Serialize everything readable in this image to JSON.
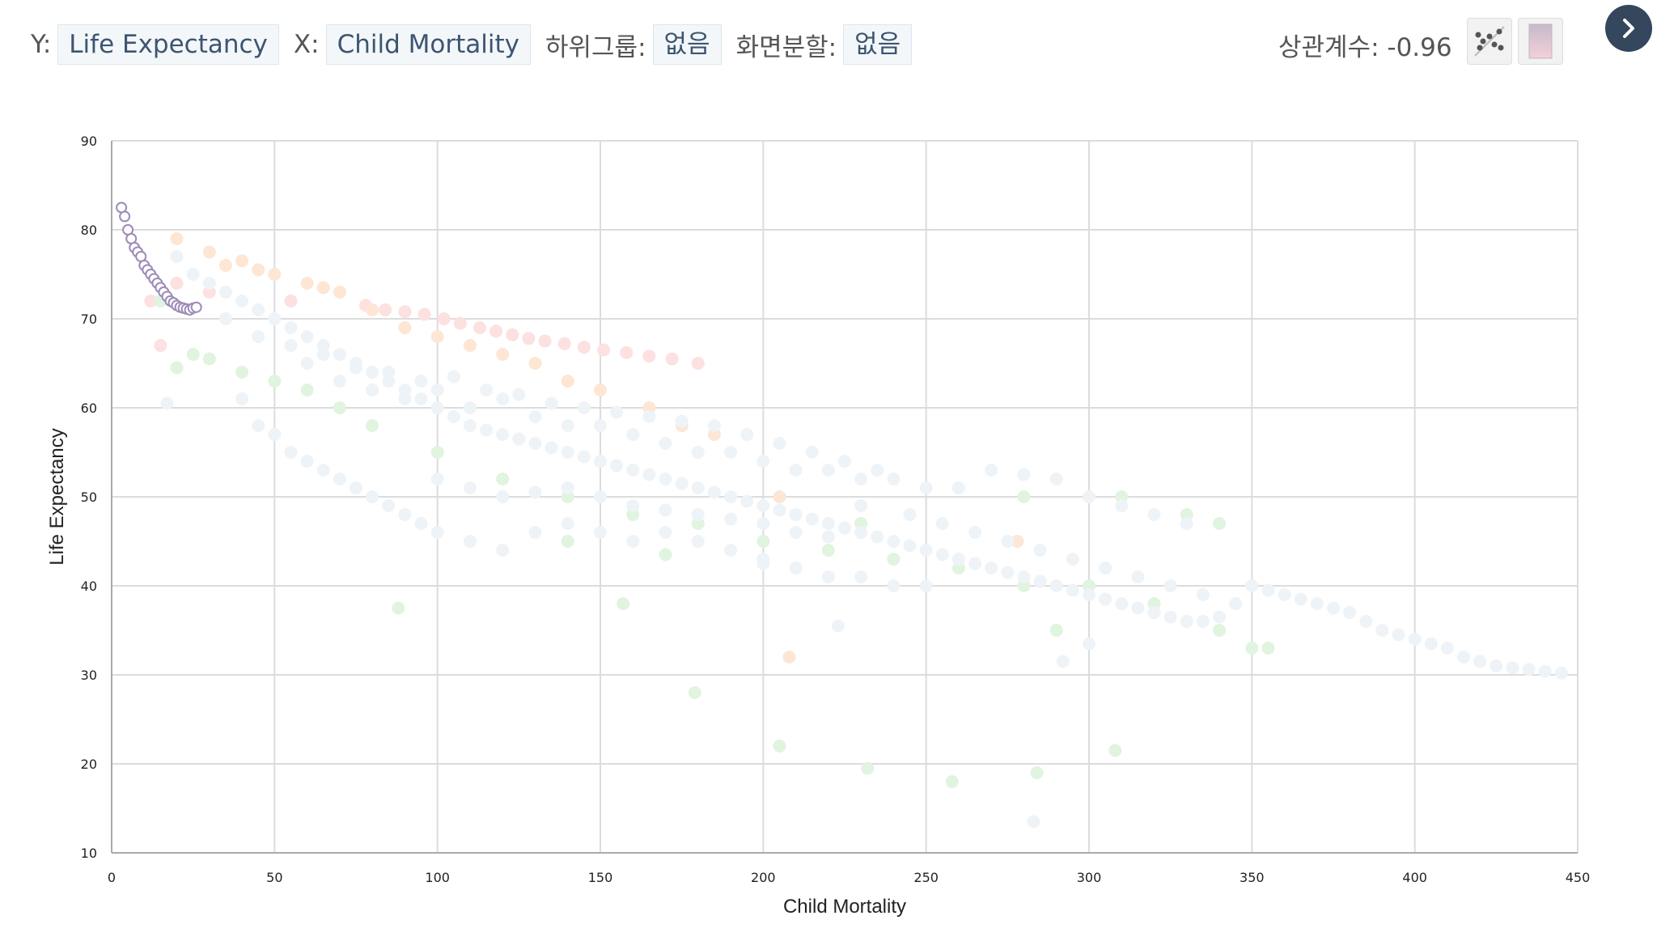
{
  "toolbar": {
    "y_label": "Y:",
    "y_value": "Life Expectancy",
    "x_label": "X:",
    "x_value": "Child Mortality",
    "subgroup_label": "하위그룹:",
    "subgroup_value": "없음",
    "split_label": "화면분할:",
    "split_value": "없음",
    "correlation": "상관계수: -0.96"
  },
  "icons": {
    "scatter": "scatter-trend-icon",
    "color": "color-gradient-icon",
    "next": "chevron-right-icon"
  },
  "chart_data": {
    "type": "scatter",
    "xlabel": "Child Mortality",
    "ylabel": "Life Expectancy",
    "xlim": [
      0,
      450
    ],
    "ylim": [
      10,
      90
    ],
    "xticks": [
      0,
      50,
      100,
      150,
      200,
      250,
      300,
      350,
      400,
      450
    ],
    "yticks": [
      10,
      20,
      30,
      40,
      50,
      60,
      70,
      80,
      90
    ],
    "grid": true,
    "colors": {
      "pink": "#fde0e0",
      "orange": "#fde6d3",
      "green": "#e0f4e0",
      "blue": "#eef3f8",
      "highlight": "#9d8bb8"
    },
    "series": [
      {
        "color": "pink",
        "values": [
          [
            78,
            71.5
          ],
          [
            84,
            71
          ],
          [
            90,
            70.8
          ],
          [
            96,
            70.5
          ],
          [
            102,
            70
          ],
          [
            107,
            69.5
          ],
          [
            113,
            69
          ],
          [
            118,
            68.6
          ],
          [
            123,
            68.2
          ],
          [
            128,
            67.8
          ],
          [
            133,
            67.5
          ],
          [
            139,
            67.2
          ],
          [
            145,
            66.8
          ],
          [
            151,
            66.5
          ],
          [
            158,
            66.2
          ],
          [
            165,
            65.8
          ],
          [
            172,
            65.5
          ],
          [
            180,
            65
          ],
          [
            15,
            67
          ],
          [
            12,
            72
          ],
          [
            20,
            74
          ],
          [
            30,
            73
          ],
          [
            55,
            72
          ]
        ]
      },
      {
        "color": "orange",
        "values": [
          [
            20,
            79
          ],
          [
            30,
            77.5
          ],
          [
            40,
            76.5
          ],
          [
            50,
            75
          ],
          [
            60,
            74
          ],
          [
            70,
            73
          ],
          [
            80,
            71
          ],
          [
            90,
            69
          ],
          [
            100,
            68
          ],
          [
            110,
            67
          ],
          [
            120,
            66
          ],
          [
            130,
            65
          ],
          [
            140,
            63
          ],
          [
            150,
            62
          ],
          [
            165,
            60
          ],
          [
            175,
            58
          ],
          [
            185,
            57
          ],
          [
            208,
            32
          ],
          [
            278,
            45
          ],
          [
            205,
            50
          ],
          [
            35,
            76
          ],
          [
            45,
            75.5
          ],
          [
            65,
            73.5
          ]
        ]
      },
      {
        "color": "green",
        "values": [
          [
            15,
            72
          ],
          [
            20,
            64.5
          ],
          [
            25,
            66
          ],
          [
            30,
            65.5
          ],
          [
            40,
            64
          ],
          [
            50,
            63
          ],
          [
            60,
            62
          ],
          [
            70,
            60
          ],
          [
            80,
            58
          ],
          [
            100,
            55
          ],
          [
            120,
            52
          ],
          [
            140,
            50
          ],
          [
            160,
            48
          ],
          [
            180,
            47
          ],
          [
            200,
            45
          ],
          [
            220,
            44
          ],
          [
            240,
            43
          ],
          [
            260,
            42
          ],
          [
            280,
            40
          ],
          [
            300,
            40
          ],
          [
            320,
            38
          ],
          [
            330,
            36
          ],
          [
            340,
            35
          ],
          [
            350,
            33
          ],
          [
            355,
            33
          ],
          [
            290,
            35
          ],
          [
            310,
            50
          ],
          [
            330,
            48
          ],
          [
            340,
            47
          ],
          [
            157,
            38
          ],
          [
            179,
            28
          ],
          [
            205,
            22
          ],
          [
            232,
            19.5
          ],
          [
            258,
            18
          ],
          [
            284,
            19
          ],
          [
            308,
            21.5
          ],
          [
            88,
            37.5
          ],
          [
            140,
            45
          ],
          [
            170,
            43.5
          ],
          [
            230,
            47
          ],
          [
            280,
            50
          ]
        ]
      },
      {
        "color": "blue",
        "values": [
          [
            20,
            77
          ],
          [
            25,
            75
          ],
          [
            30,
            74
          ],
          [
            35,
            73
          ],
          [
            40,
            72
          ],
          [
            45,
            71
          ],
          [
            50,
            70
          ],
          [
            55,
            69
          ],
          [
            60,
            68
          ],
          [
            65,
            67
          ],
          [
            70,
            66
          ],
          [
            75,
            65
          ],
          [
            80,
            64
          ],
          [
            85,
            63
          ],
          [
            90,
            62
          ],
          [
            95,
            61
          ],
          [
            100,
            60
          ],
          [
            105,
            59
          ],
          [
            110,
            58
          ],
          [
            115,
            57.5
          ],
          [
            120,
            57
          ],
          [
            125,
            56.5
          ],
          [
            130,
            56
          ],
          [
            135,
            55.5
          ],
          [
            140,
            55
          ],
          [
            145,
            54.5
          ],
          [
            150,
            54
          ],
          [
            155,
            53.5
          ],
          [
            160,
            53
          ],
          [
            165,
            52.5
          ],
          [
            170,
            52
          ],
          [
            175,
            51.5
          ],
          [
            180,
            51
          ],
          [
            185,
            50.5
          ],
          [
            190,
            50
          ],
          [
            195,
            49.5
          ],
          [
            200,
            49
          ],
          [
            205,
            48.5
          ],
          [
            210,
            48
          ],
          [
            215,
            47.5
          ],
          [
            220,
            47
          ],
          [
            225,
            46.5
          ],
          [
            230,
            46
          ],
          [
            235,
            45.5
          ],
          [
            240,
            45
          ],
          [
            245,
            44.5
          ],
          [
            250,
            44
          ],
          [
            255,
            43.5
          ],
          [
            260,
            43
          ],
          [
            265,
            42.5
          ],
          [
            270,
            42
          ],
          [
            275,
            41.5
          ],
          [
            280,
            41
          ],
          [
            285,
            40.5
          ],
          [
            290,
            40
          ],
          [
            295,
            39.5
          ],
          [
            300,
            39
          ],
          [
            305,
            38.5
          ],
          [
            310,
            38
          ],
          [
            315,
            37.5
          ],
          [
            320,
            37
          ],
          [
            325,
            36.5
          ],
          [
            330,
            36
          ],
          [
            335,
            36
          ],
          [
            340,
            36.5
          ],
          [
            350,
            40
          ],
          [
            355,
            39.5
          ],
          [
            360,
            39
          ],
          [
            365,
            38.5
          ],
          [
            370,
            38
          ],
          [
            375,
            37.5
          ],
          [
            380,
            37
          ],
          [
            385,
            36
          ],
          [
            390,
            35
          ],
          [
            395,
            34.5
          ],
          [
            400,
            34
          ],
          [
            405,
            33.5
          ],
          [
            410,
            33
          ],
          [
            415,
            32
          ],
          [
            420,
            31.5
          ],
          [
            425,
            31
          ],
          [
            430,
            30.8
          ],
          [
            435,
            30.6
          ],
          [
            440,
            30.4
          ],
          [
            445,
            30.2
          ],
          [
            40,
            61
          ],
          [
            45,
            58
          ],
          [
            50,
            57
          ],
          [
            55,
            55
          ],
          [
            60,
            54
          ],
          [
            65,
            53
          ],
          [
            70,
            52
          ],
          [
            75,
            51
          ],
          [
            80,
            50
          ],
          [
            85,
            49
          ],
          [
            90,
            48
          ],
          [
            95,
            47
          ],
          [
            100,
            46
          ],
          [
            110,
            45
          ],
          [
            120,
            44
          ],
          [
            130,
            46
          ],
          [
            140,
            47
          ],
          [
            150,
            46
          ],
          [
            160,
            45
          ],
          [
            170,
            46
          ],
          [
            180,
            45
          ],
          [
            190,
            44
          ],
          [
            200,
            43
          ],
          [
            210,
            42
          ],
          [
            220,
            41
          ],
          [
            230,
            41
          ],
          [
            240,
            40
          ],
          [
            250,
            40
          ],
          [
            60,
            65
          ],
          [
            70,
            63
          ],
          [
            80,
            62
          ],
          [
            90,
            61
          ],
          [
            100,
            62
          ],
          [
            110,
            60
          ],
          [
            120,
            61
          ],
          [
            130,
            59
          ],
          [
            140,
            58
          ],
          [
            150,
            58
          ],
          [
            160,
            57
          ],
          [
            170,
            56
          ],
          [
            180,
            55
          ],
          [
            190,
            55
          ],
          [
            200,
            54
          ],
          [
            210,
            53
          ],
          [
            220,
            53
          ],
          [
            230,
            52
          ],
          [
            240,
            52
          ],
          [
            250,
            51
          ],
          [
            260,
            51
          ],
          [
            270,
            53
          ],
          [
            280,
            52.5
          ],
          [
            290,
            52
          ],
          [
            300,
            50
          ],
          [
            310,
            49
          ],
          [
            320,
            48
          ],
          [
            330,
            47
          ],
          [
            17,
            60.5
          ],
          [
            200,
            42.5
          ],
          [
            223,
            35.5
          ],
          [
            283,
            13.5
          ],
          [
            300,
            33.5
          ],
          [
            292,
            31.5
          ],
          [
            230,
            49
          ],
          [
            245,
            48
          ],
          [
            255,
            47
          ],
          [
            265,
            46
          ],
          [
            275,
            45
          ],
          [
            285,
            44
          ],
          [
            295,
            43
          ],
          [
            305,
            42
          ],
          [
            315,
            41
          ],
          [
            325,
            40
          ],
          [
            335,
            39
          ],
          [
            345,
            38
          ],
          [
            100,
            52
          ],
          [
            110,
            51
          ],
          [
            120,
            50
          ],
          [
            130,
            50.5
          ],
          [
            140,
            51
          ],
          [
            150,
            50
          ],
          [
            160,
            49
          ],
          [
            170,
            48.5
          ],
          [
            180,
            48
          ],
          [
            190,
            47.5
          ],
          [
            200,
            47
          ],
          [
            210,
            46
          ],
          [
            220,
            45.5
          ],
          [
            35,
            70
          ],
          [
            45,
            68
          ],
          [
            55,
            67
          ],
          [
            65,
            66
          ],
          [
            75,
            64.5
          ],
          [
            85,
            64
          ],
          [
            95,
            63
          ],
          [
            105,
            63.5
          ],
          [
            115,
            62
          ],
          [
            125,
            61.5
          ],
          [
            135,
            60.5
          ],
          [
            145,
            60
          ],
          [
            155,
            59.5
          ],
          [
            165,
            59
          ],
          [
            175,
            58.5
          ],
          [
            185,
            58
          ],
          [
            195,
            57
          ],
          [
            205,
            56
          ],
          [
            215,
            55
          ],
          [
            225,
            54
          ],
          [
            235,
            53
          ]
        ]
      },
      {
        "color": "highlight",
        "values": [
          [
            3,
            82.5
          ],
          [
            4,
            81.5
          ],
          [
            5,
            80
          ],
          [
            6,
            79
          ],
          [
            7,
            78
          ],
          [
            8,
            77.5
          ],
          [
            9,
            77
          ],
          [
            10,
            76
          ],
          [
            11,
            75.5
          ],
          [
            12,
            75
          ],
          [
            13,
            74.5
          ],
          [
            14,
            74
          ],
          [
            15,
            73.5
          ],
          [
            16,
            73
          ],
          [
            17,
            72.5
          ],
          [
            18,
            72
          ],
          [
            19,
            71.8
          ],
          [
            20,
            71.5
          ],
          [
            21,
            71.3
          ],
          [
            22,
            71.2
          ],
          [
            23,
            71.1
          ],
          [
            24,
            71
          ],
          [
            25,
            71.2
          ],
          [
            26,
            71.3
          ]
        ]
      }
    ]
  }
}
